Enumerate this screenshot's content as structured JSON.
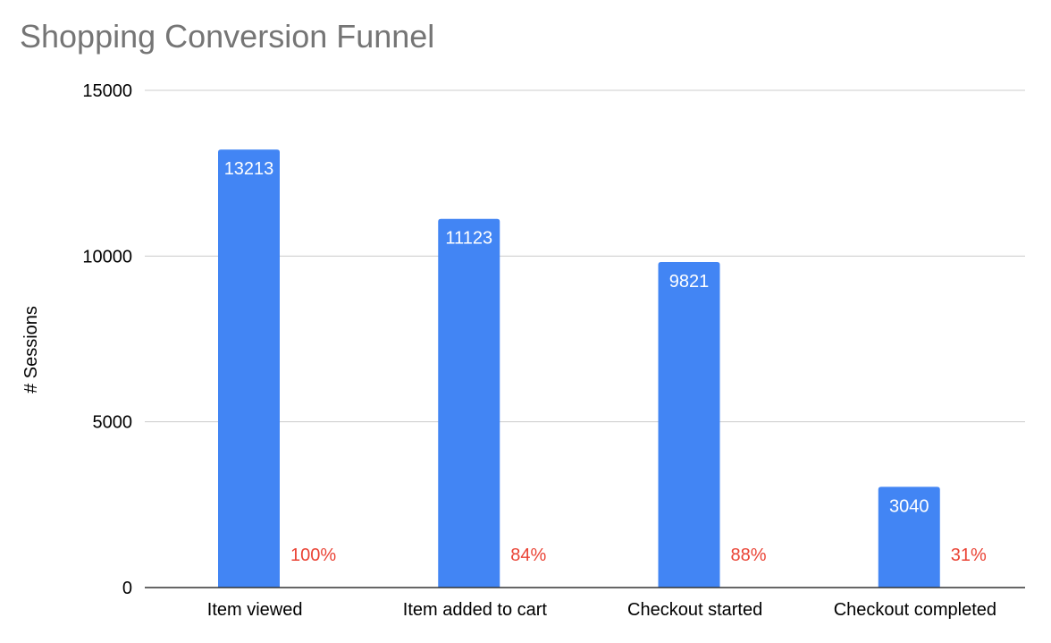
{
  "chart_data": {
    "type": "bar",
    "title": "Shopping Conversion Funnel",
    "xlabel": "",
    "ylabel": "# Sessions",
    "ylim": [
      0,
      15000
    ],
    "yticks": [
      0,
      5000,
      10000,
      15000
    ],
    "grid": true,
    "categories": [
      "Item viewed",
      "Item added to cart",
      "Checkout started",
      "Checkout completed"
    ],
    "series": [
      {
        "values": [
          13213,
          11123,
          9821,
          3040
        ],
        "data_labels": [
          "13213",
          "11123",
          "9821",
          "3040"
        ],
        "color": "#4285f4"
      },
      {
        "values": [
          100,
          84,
          88,
          31
        ],
        "data_labels": [
          "100%",
          "84%",
          "88%",
          "31%"
        ],
        "color": "#ea4335"
      }
    ]
  }
}
